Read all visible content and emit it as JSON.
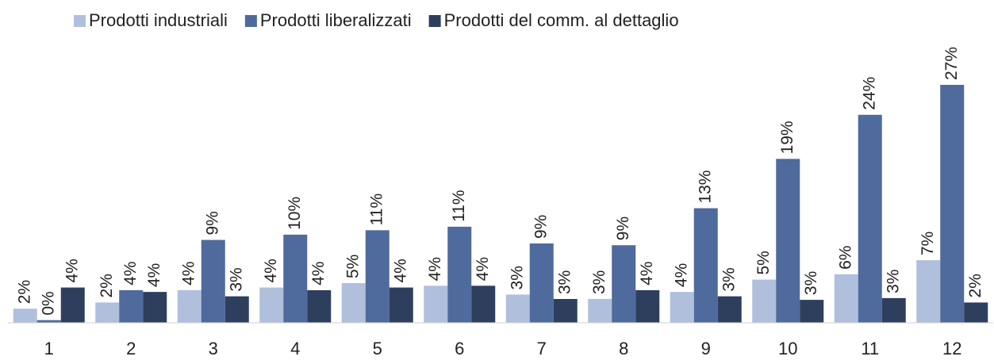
{
  "chart_data": {
    "type": "bar",
    "categories": [
      "1",
      "2",
      "3",
      "4",
      "5",
      "6",
      "7",
      "8",
      "9",
      "10",
      "11",
      "12"
    ],
    "series": [
      {
        "name": "Prodotti industriali",
        "color": "#b0bfdc",
        "values": [
          1.6,
          2.3,
          3.7,
          4.0,
          4.5,
          4.2,
          3.2,
          2.7,
          3.5,
          4.9,
          5.5,
          7.1
        ],
        "value_labels": [
          "2%",
          "2%",
          "4%",
          "4%",
          "5%",
          "4%",
          "3%",
          "3%",
          "4%",
          "5%",
          "6%",
          "7%"
        ]
      },
      {
        "name": "Prodotti liberalizzati",
        "color": "#4f6a9c",
        "values": [
          0.3,
          3.7,
          9.4,
          10.0,
          10.5,
          10.9,
          9.0,
          8.8,
          13.0,
          18.6,
          23.6,
          27.0
        ],
        "value_labels": [
          "0%",
          "4%",
          "9%",
          "10%",
          "11%",
          "11%",
          "9%",
          "9%",
          "13%",
          "19%",
          "24%",
          "27%"
        ]
      },
      {
        "name": "Prodotti del comm. al dettaglio",
        "color": "#2e3f5e",
        "values": [
          4.0,
          3.5,
          3.0,
          3.7,
          4.0,
          4.2,
          2.7,
          3.7,
          3.0,
          2.6,
          2.8,
          2.3
        ],
        "value_labels": [
          "4%",
          "4%",
          "3%",
          "4%",
          "4%",
          "4%",
          "3%",
          "4%",
          "3%",
          "3%",
          "3%",
          "2%"
        ]
      }
    ]
  }
}
